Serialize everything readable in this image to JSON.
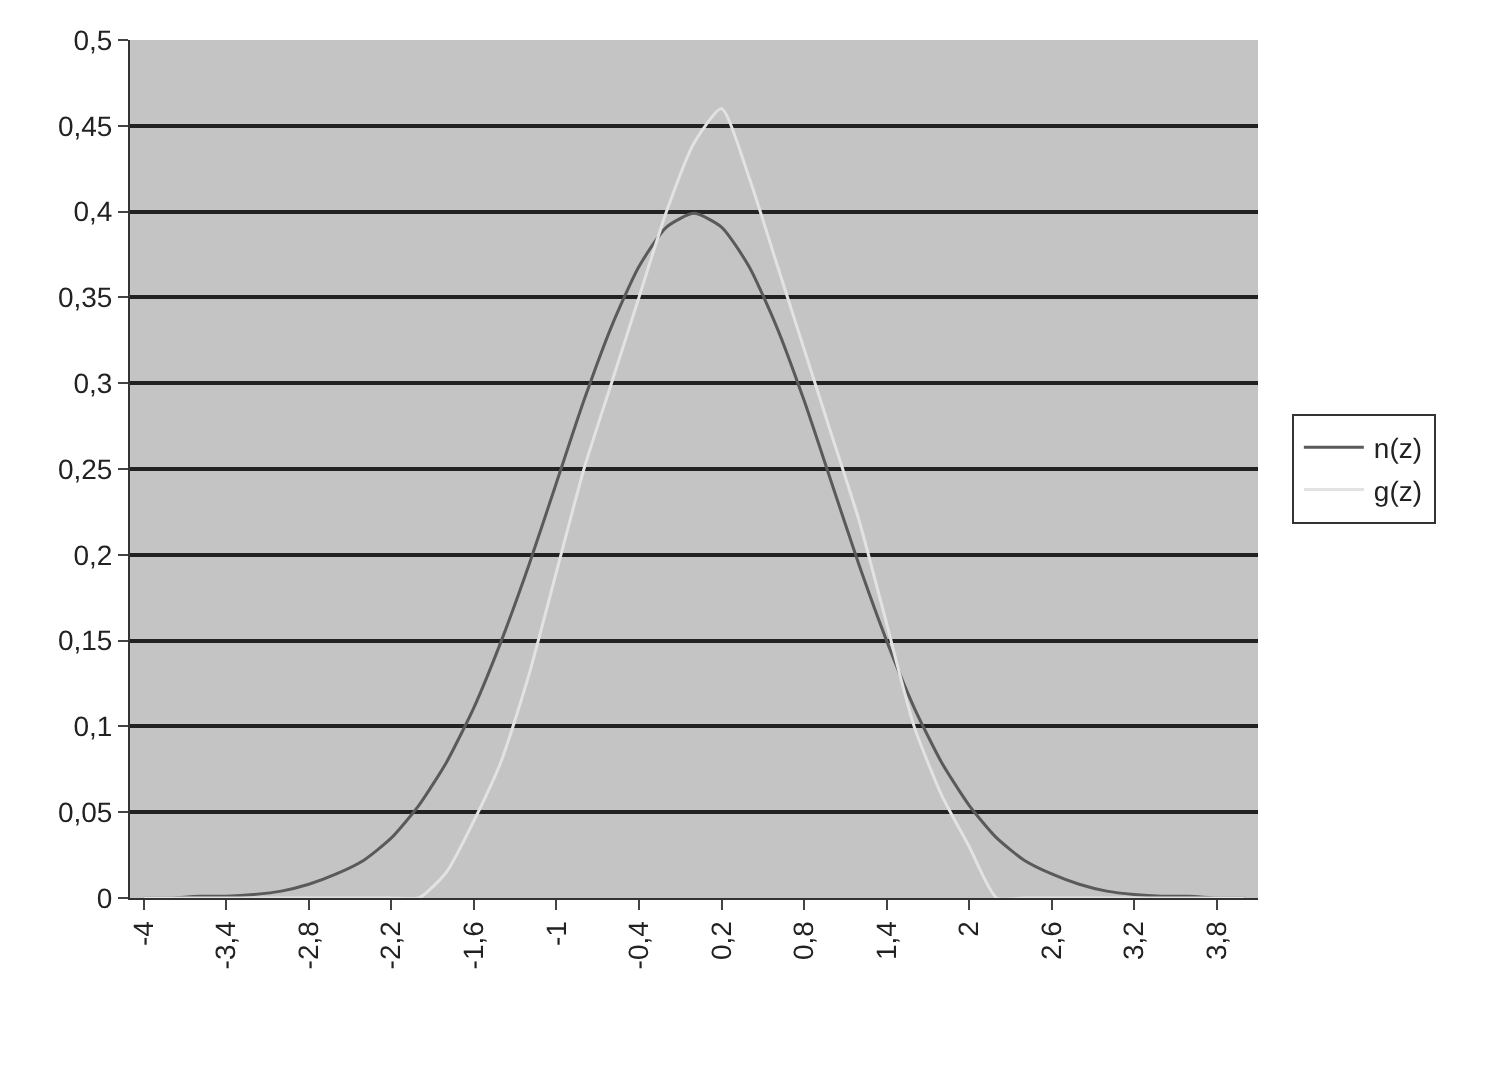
{
  "chart_data": {
    "type": "line",
    "categories": [
      "-4",
      null,
      null,
      "-3,4",
      null,
      null,
      "-2,8",
      null,
      null,
      "-2,2",
      null,
      null,
      "-1,6",
      null,
      null,
      "-1",
      null,
      null,
      "-0,4",
      null,
      null,
      "0,2",
      null,
      null,
      "0,8",
      null,
      null,
      "1,4",
      null,
      null,
      "2",
      null,
      null,
      "2,6",
      null,
      null,
      "3,2",
      null,
      null,
      "3,8",
      null
    ],
    "series": [
      {
        "name": "n(z)",
        "color": "#5a5a5a",
        "values": [
          0,
          0,
          0.001,
          0.001,
          0.002,
          0.004,
          0.008,
          0.014,
          0.022,
          0.035,
          0.054,
          0.079,
          0.111,
          0.15,
          0.194,
          0.242,
          0.29,
          0.333,
          0.368,
          0.391,
          0.399,
          0.391,
          0.368,
          0.333,
          0.29,
          0.242,
          0.194,
          0.15,
          0.111,
          0.079,
          0.054,
          0.035,
          0.022,
          0.014,
          0.008,
          0.004,
          0.002,
          0.001,
          0.001,
          0,
          0
        ]
      },
      {
        "name": "g(z)",
        "color": "#e2e2e2",
        "values": [
          0,
          0,
          0,
          0,
          0,
          0,
          0,
          0,
          0,
          0,
          0,
          0.015,
          0.045,
          0.08,
          0.13,
          0.19,
          0.25,
          0.3,
          0.35,
          0.4,
          0.44,
          0.46,
          0.42,
          0.37,
          0.32,
          0.27,
          0.22,
          0.16,
          0.1,
          0.06,
          0.03,
          0,
          0,
          0,
          0,
          0,
          0,
          0,
          0,
          0,
          0
        ]
      }
    ],
    "ylim": [
      0,
      0.5
    ],
    "yticks": [
      0,
      {
        "value": 0.05,
        "label": "0,05"
      },
      {
        "value": 0.1,
        "label": "0,1"
      },
      {
        "value": 0.15,
        "label": "0,15"
      },
      {
        "value": 0.2,
        "label": "0,2"
      },
      {
        "value": 0.25,
        "label": "0,25"
      },
      {
        "value": 0.3,
        "label": "0,3"
      },
      {
        "value": 0.35,
        "label": "0,35"
      },
      {
        "value": 0.4,
        "label": "0,4"
      },
      {
        "value": 0.45,
        "label": "0,45"
      },
      {
        "value": 0.5,
        "label": "0,5"
      }
    ],
    "grid": "y",
    "legend": "right",
    "marker": "none",
    "line_style": "solid"
  }
}
